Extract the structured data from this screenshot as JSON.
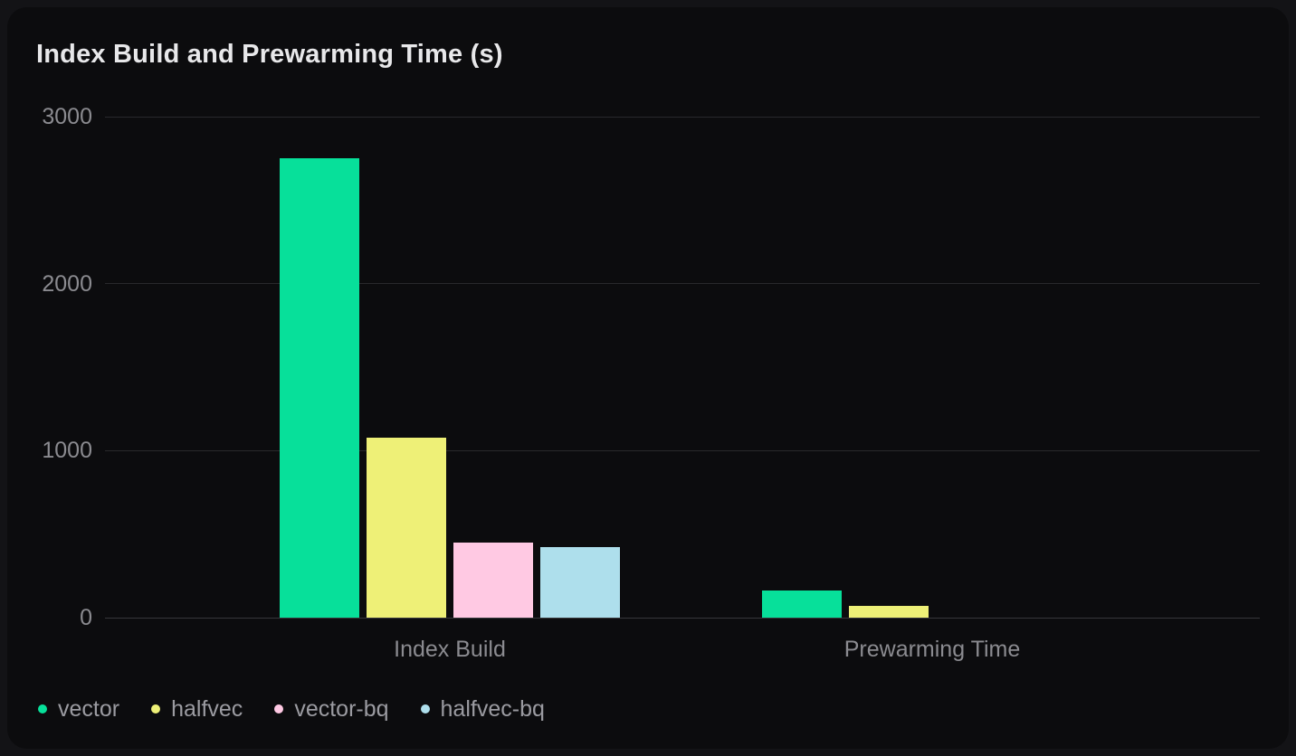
{
  "chart_data": {
    "type": "bar",
    "title": "Index Build and Prewarming Time (s)",
    "categories": [
      "Index Build",
      "Prewarming Time"
    ],
    "series": [
      {
        "name": "vector",
        "color": "#07e09a",
        "values": [
          2750,
          165
        ]
      },
      {
        "name": "halfvec",
        "color": "#eef077",
        "values": [
          1080,
          70
        ]
      },
      {
        "name": "vector-bq",
        "color": "#ffc9e3",
        "values": [
          450,
          0
        ]
      },
      {
        "name": "halfvec-bq",
        "color": "#aedfec",
        "values": [
          420,
          0
        ]
      }
    ],
    "ylabel": "",
    "xlabel": "",
    "ylim": [
      0,
      3000
    ],
    "yticks": [
      0,
      1000,
      2000,
      3000
    ],
    "grid": true,
    "legend_position": "bottom",
    "background_color": "#0c0c0e",
    "gridline_color": "#29292c",
    "axis_label_color": "#8b8b90",
    "title_color": "#e8e8ea"
  }
}
